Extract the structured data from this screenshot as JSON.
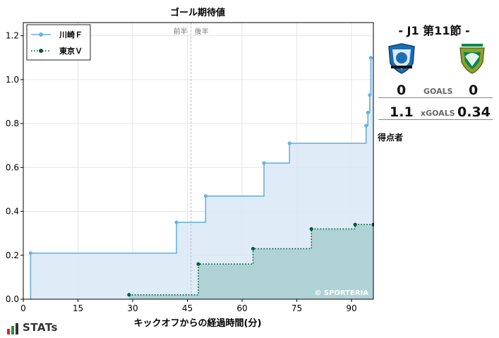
{
  "chart_data": {
    "type": "line",
    "title": "ゴール期待値",
    "xlabel": "キックオフからの経過時間(分)",
    "ylabel": "",
    "xlim": [
      0,
      96
    ],
    "ylim": [
      0,
      1.26
    ],
    "xticks": [
      0,
      15,
      30,
      45,
      60,
      75,
      90
    ],
    "yticks": [
      0.0,
      0.2,
      0.4,
      0.6,
      0.8,
      1.0,
      1.2
    ],
    "grid": true,
    "step": "post",
    "legend_position": "top-left",
    "halftime_x": 46,
    "half_labels": [
      "前半",
      "後半"
    ],
    "watermark": "© SPORTERIA",
    "series": [
      {
        "name": "川崎Ｆ",
        "color": "#67b2e4",
        "fill": "#d9e9f7",
        "line_style": "solid",
        "points": [
          [
            2,
            0.0
          ],
          [
            2,
            0.21
          ],
          [
            42,
            0.35
          ],
          [
            50,
            0.47
          ],
          [
            66,
            0.62
          ],
          [
            73,
            0.71
          ],
          [
            94,
            0.79
          ],
          [
            94.5,
            0.85
          ],
          [
            95,
            0.93
          ],
          [
            95.3,
            1.1
          ],
          [
            96,
            1.1
          ]
        ]
      },
      {
        "name": "東京Ｖ",
        "color": "#005a3c",
        "fill": "#a3cdcc",
        "line_style": "dotted",
        "points": [
          [
            29,
            0.02
          ],
          [
            48,
            0.16
          ],
          [
            63,
            0.23
          ],
          [
            79,
            0.32
          ],
          [
            91,
            0.34
          ],
          [
            96,
            0.34
          ]
        ]
      }
    ]
  },
  "match": {
    "title": "-  J1 第11節  -",
    "home_goals": "0",
    "away_goals": "0",
    "goals_label": "GOALS",
    "home_xg": "1.1",
    "away_xg": "0.34",
    "xg_label": "xGOALS",
    "scorers_label": "得点者",
    "home_color": "#1b6fb5",
    "away_color": "#00884a"
  },
  "brand": {
    "name": "STATs"
  }
}
